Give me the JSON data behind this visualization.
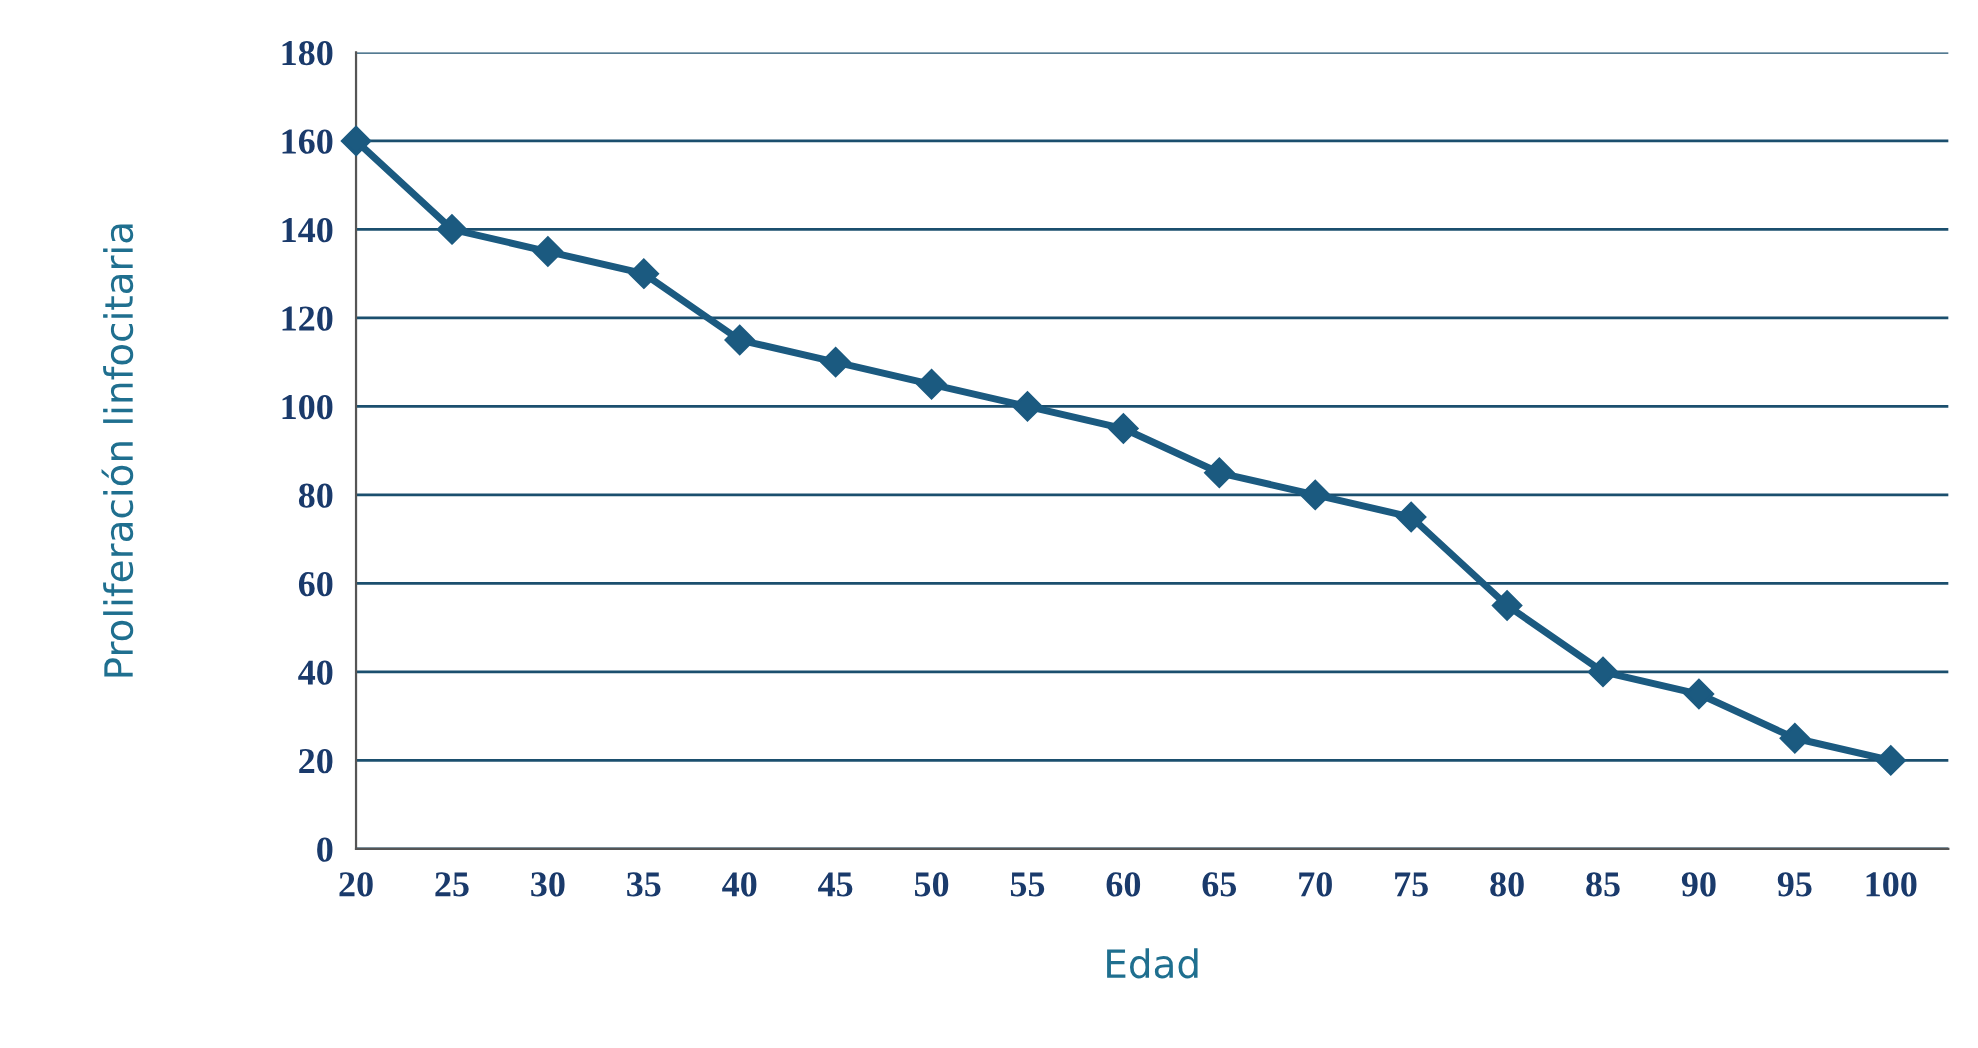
{
  "chart_data": {
    "type": "line",
    "xlabel": "Edad",
    "ylabel": "Proliferación linfocitaria",
    "x": [
      20,
      25,
      30,
      35,
      40,
      45,
      50,
      55,
      60,
      65,
      70,
      75,
      80,
      85,
      90,
      95,
      100
    ],
    "series": [
      {
        "color": "#1b5a80",
        "values": [
          160,
          140,
          135,
          130,
          115,
          110,
          105,
          100,
          95,
          85,
          80,
          75,
          55,
          40,
          35,
          25,
          20
        ]
      }
    ],
    "xlim": [
      20,
      103
    ],
    "xticks": [
      20,
      25,
      30,
      35,
      40,
      45,
      50,
      55,
      60,
      65,
      70,
      75,
      80,
      85,
      90,
      95,
      100
    ],
    "ylim": [
      0,
      180
    ],
    "yticks": [
      0,
      20,
      40,
      60,
      80,
      100,
      120,
      140,
      160,
      180
    ],
    "grid": "y",
    "legend": false,
    "marker": "diamond",
    "line_style": "solid"
  }
}
